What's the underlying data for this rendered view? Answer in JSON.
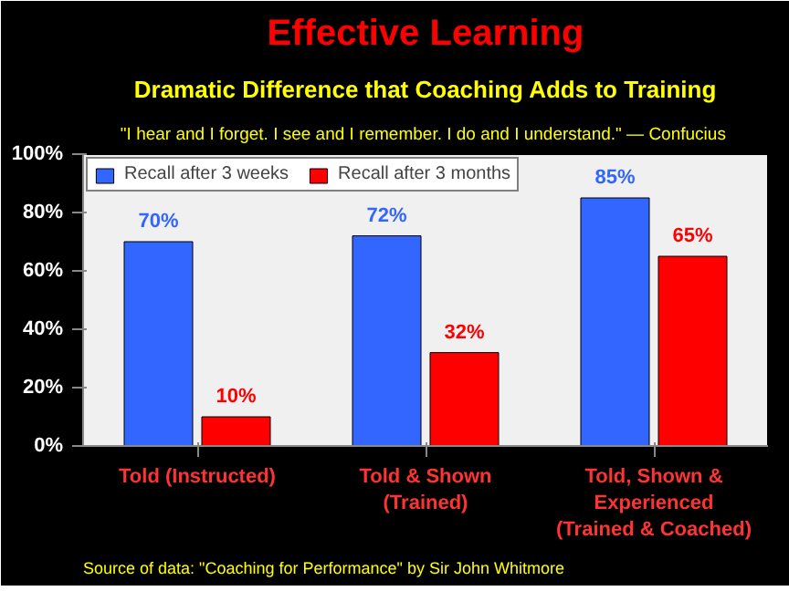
{
  "chart_data": {
    "type": "bar",
    "title": "Effective Learning",
    "subtitle": "Dramatic Difference that Coaching Adds to Training",
    "annotations": [
      "\"I hear and I forget. I see and I remember. I do and I understand.\"",
      "— Confucius",
      "Source of data: \"Coaching for Performance\" by Sir John Whitmore"
    ],
    "categories": [
      "Told (Instructed)",
      "Told & Shown\n(Trained)",
      "Told, Shown &\nExperienced\n(Trained & Coached)"
    ],
    "series": [
      {
        "name": "Recall after 3 weeks",
        "color": "#3366ff",
        "values": [
          70,
          72,
          85
        ],
        "value_labels": [
          "70%",
          "72%",
          "85%"
        ]
      },
      {
        "name": "Recall after 3 months",
        "color": "#ff0000",
        "values": [
          10,
          32,
          65
        ],
        "value_labels": [
          "10%",
          "32%",
          "65%"
        ]
      }
    ],
    "ylim": [
      0,
      100
    ],
    "yticks": [
      {
        "value": 0,
        "label": "0%"
      },
      {
        "value": 20,
        "label": "20%"
      },
      {
        "value": 40,
        "label": "40%"
      },
      {
        "value": 60,
        "label": "60%"
      },
      {
        "value": 80,
        "label": "80%"
      },
      {
        "value": 100,
        "label": "100%"
      }
    ],
    "legend": "top left"
  }
}
